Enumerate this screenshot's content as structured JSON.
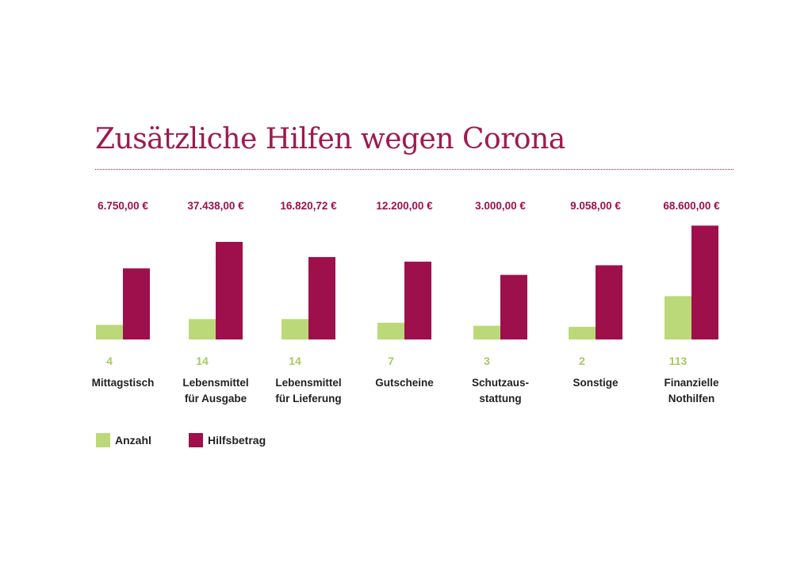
{
  "title": "Zusätzliche Hilfen wegen Corona",
  "colors": {
    "anzahl": "#bcd97a",
    "hilfsbetrag": "#9e104b",
    "title": "#9e1a4f",
    "count_label": "#a8c960",
    "amount_label": "#9e104b"
  },
  "legend": {
    "anzahl": "Anzahl",
    "hilfsbetrag": "Hilfsbetrag"
  },
  "chart_data": {
    "type": "bar",
    "title": "Zusätzliche Hilfen wegen Corona",
    "categories": [
      [
        "Mittagstisch"
      ],
      [
        "Lebensmittel",
        "für Ausgabe"
      ],
      [
        "Lebensmittel",
        "für Lieferung"
      ],
      [
        "Gutscheine"
      ],
      [
        "Schutzaus-",
        "stattung"
      ],
      [
        "Sonstige"
      ],
      [
        "Finanzielle",
        "Nothilfen"
      ]
    ],
    "series": [
      {
        "name": "Anzahl",
        "values": [
          4,
          14,
          14,
          7,
          3,
          2,
          113
        ]
      },
      {
        "name": "Hilfsbetrag",
        "values": [
          6750.0,
          37438.0,
          16820.72,
          12200.0,
          3000.0,
          9058.0,
          68600.0
        ]
      }
    ],
    "count_labels": [
      "4",
      "14",
      "14",
      "7",
      "3",
      "2",
      "113"
    ],
    "amount_labels": [
      "6.750,00 €",
      "37.438,00 €",
      "16.820,72 €",
      "12.200,00 €",
      "3.000,00 €",
      "9.058,00 €",
      "68.600,00 €"
    ],
    "legend_position": "bottom-left",
    "grid": false
  }
}
